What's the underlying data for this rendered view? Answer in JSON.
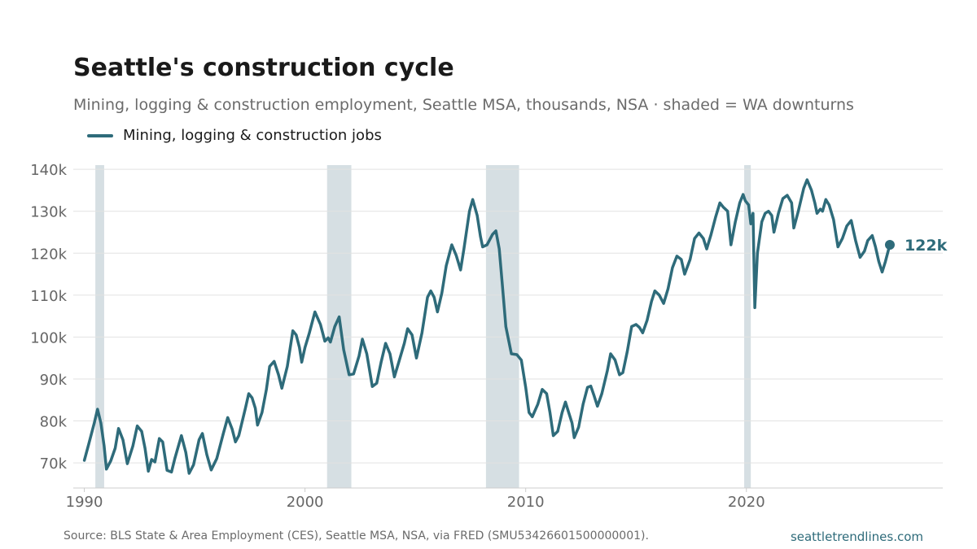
{
  "chart_data": {
    "type": "line",
    "title": "Seattle's construction cycle",
    "subtitle": "Mining, logging & construction employment, Seattle MSA, thousands, NSA · shaded = WA downturns",
    "xlabel": "",
    "ylabel": "",
    "xlim": [
      1989.5,
      2028.9
    ],
    "ylim": [
      64,
      141
    ],
    "x_ticks": [
      1990,
      2000,
      2010,
      2020
    ],
    "y_ticks": [
      70,
      80,
      90,
      100,
      110,
      120,
      130,
      140
    ],
    "y_tick_labels": [
      "70k",
      "80k",
      "90k",
      "100k",
      "110k",
      "120k",
      "130k",
      "140k"
    ],
    "grid": "horizontal",
    "legend_position": "top-left",
    "shaded_periods": [
      [
        1990.5,
        1990.9
      ],
      [
        2001.0,
        2002.1
      ],
      [
        2008.2,
        2009.7
      ],
      [
        2019.9,
        2020.2
      ]
    ],
    "series": [
      {
        "name": "Mining, logging & construction jobs",
        "color": "#2e6b7a",
        "points": [
          [
            1990.0,
            70.6
          ],
          [
            1990.2,
            74.5
          ],
          [
            1990.45,
            79.5
          ],
          [
            1990.6,
            82.8
          ],
          [
            1990.75,
            79.5
          ],
          [
            1990.9,
            74.0
          ],
          [
            1991.0,
            68.5
          ],
          [
            1991.2,
            70.5
          ],
          [
            1991.4,
            73.5
          ],
          [
            1991.55,
            78.2
          ],
          [
            1991.75,
            75.5
          ],
          [
            1991.95,
            69.8
          ],
          [
            1992.2,
            74.0
          ],
          [
            1992.4,
            78.8
          ],
          [
            1992.6,
            77.5
          ],
          [
            1992.75,
            73.5
          ],
          [
            1992.9,
            68.0
          ],
          [
            1993.05,
            70.8
          ],
          [
            1993.2,
            70.2
          ],
          [
            1993.4,
            75.8
          ],
          [
            1993.55,
            75.0
          ],
          [
            1993.75,
            68.2
          ],
          [
            1993.95,
            67.8
          ],
          [
            1994.1,
            71.0
          ],
          [
            1994.4,
            76.5
          ],
          [
            1994.6,
            72.5
          ],
          [
            1994.75,
            67.5
          ],
          [
            1994.95,
            69.5
          ],
          [
            1995.2,
            75.5
          ],
          [
            1995.35,
            77.0
          ],
          [
            1995.55,
            72.0
          ],
          [
            1995.75,
            68.3
          ],
          [
            1996.0,
            71.0
          ],
          [
            1996.3,
            77.0
          ],
          [
            1996.5,
            80.8
          ],
          [
            1996.7,
            78.0
          ],
          [
            1996.85,
            75.0
          ],
          [
            1997.0,
            76.5
          ],
          [
            1997.3,
            83.0
          ],
          [
            1997.45,
            86.5
          ],
          [
            1997.6,
            85.5
          ],
          [
            1997.75,
            83.0
          ],
          [
            1997.85,
            79.0
          ],
          [
            1998.05,
            82.0
          ],
          [
            1998.25,
            87.5
          ],
          [
            1998.4,
            93.0
          ],
          [
            1998.6,
            94.2
          ],
          [
            1998.8,
            91.0
          ],
          [
            1998.95,
            87.8
          ],
          [
            1999.2,
            93.0
          ],
          [
            1999.45,
            101.5
          ],
          [
            1999.6,
            100.5
          ],
          [
            1999.75,
            97.5
          ],
          [
            1999.85,
            94.0
          ],
          [
            2000.0,
            97.5
          ],
          [
            2000.2,
            101.0
          ],
          [
            2000.45,
            106.0
          ],
          [
            2000.7,
            103.0
          ],
          [
            2000.9,
            99.0
          ],
          [
            2001.05,
            99.8
          ],
          [
            2001.15,
            98.8
          ],
          [
            2001.35,
            102.5
          ],
          [
            2001.55,
            104.8
          ],
          [
            2001.75,
            97.0
          ],
          [
            2002.0,
            91.0
          ],
          [
            2002.2,
            91.2
          ],
          [
            2002.45,
            95.5
          ],
          [
            2002.6,
            99.5
          ],
          [
            2002.8,
            96.0
          ],
          [
            2003.05,
            88.2
          ],
          [
            2003.25,
            89.0
          ],
          [
            2003.45,
            94.0
          ],
          [
            2003.65,
            98.5
          ],
          [
            2003.85,
            96.0
          ],
          [
            2004.05,
            90.5
          ],
          [
            2004.25,
            94.0
          ],
          [
            2004.5,
            98.5
          ],
          [
            2004.65,
            102.0
          ],
          [
            2004.85,
            100.5
          ],
          [
            2005.05,
            95.0
          ],
          [
            2005.3,
            101.0
          ],
          [
            2005.55,
            109.5
          ],
          [
            2005.7,
            111.0
          ],
          [
            2005.85,
            109.5
          ],
          [
            2006.0,
            106.0
          ],
          [
            2006.2,
            110.5
          ],
          [
            2006.4,
            117.0
          ],
          [
            2006.65,
            122.0
          ],
          [
            2006.85,
            119.5
          ],
          [
            2007.05,
            116.0
          ],
          [
            2007.2,
            121.0
          ],
          [
            2007.45,
            130.0
          ],
          [
            2007.6,
            132.8
          ],
          [
            2007.8,
            129.0
          ],
          [
            2007.95,
            124.0
          ],
          [
            2008.05,
            121.5
          ],
          [
            2008.25,
            122.0
          ],
          [
            2008.5,
            124.5
          ],
          [
            2008.65,
            125.3
          ],
          [
            2008.8,
            121.0
          ],
          [
            2008.95,
            112.0
          ],
          [
            2009.1,
            102.5
          ],
          [
            2009.35,
            96.0
          ],
          [
            2009.6,
            95.8
          ],
          [
            2009.8,
            94.5
          ],
          [
            2010.0,
            88.0
          ],
          [
            2010.15,
            82.0
          ],
          [
            2010.3,
            81.0
          ],
          [
            2010.55,
            84.0
          ],
          [
            2010.75,
            87.5
          ],
          [
            2010.95,
            86.5
          ],
          [
            2011.1,
            82.0
          ],
          [
            2011.25,
            76.5
          ],
          [
            2011.45,
            77.5
          ],
          [
            2011.65,
            82.0
          ],
          [
            2011.8,
            84.5
          ],
          [
            2011.95,
            82.0
          ],
          [
            2012.1,
            79.5
          ],
          [
            2012.2,
            76.0
          ],
          [
            2012.4,
            78.5
          ],
          [
            2012.6,
            84.0
          ],
          [
            2012.8,
            88.0
          ],
          [
            2012.95,
            88.3
          ],
          [
            2013.1,
            86.0
          ],
          [
            2013.25,
            83.5
          ],
          [
            2013.45,
            86.5
          ],
          [
            2013.7,
            92.0
          ],
          [
            2013.85,
            96.0
          ],
          [
            2014.05,
            94.5
          ],
          [
            2014.25,
            91.0
          ],
          [
            2014.4,
            91.5
          ],
          [
            2014.6,
            96.5
          ],
          [
            2014.8,
            102.5
          ],
          [
            2015.0,
            103.0
          ],
          [
            2015.15,
            102.3
          ],
          [
            2015.3,
            101.0
          ],
          [
            2015.5,
            104.0
          ],
          [
            2015.7,
            108.5
          ],
          [
            2015.85,
            111.0
          ],
          [
            2016.05,
            110.0
          ],
          [
            2016.25,
            108.0
          ],
          [
            2016.45,
            111.5
          ],
          [
            2016.65,
            116.5
          ],
          [
            2016.85,
            119.3
          ],
          [
            2017.05,
            118.5
          ],
          [
            2017.2,
            115.0
          ],
          [
            2017.45,
            118.5
          ],
          [
            2017.65,
            123.5
          ],
          [
            2017.85,
            124.8
          ],
          [
            2018.05,
            123.5
          ],
          [
            2018.2,
            121.0
          ],
          [
            2018.4,
            124.5
          ],
          [
            2018.6,
            128.5
          ],
          [
            2018.8,
            132.0
          ],
          [
            2018.95,
            131.0
          ],
          [
            2019.15,
            130.0
          ],
          [
            2019.3,
            122.0
          ],
          [
            2019.5,
            127.5
          ],
          [
            2019.7,
            132.0
          ],
          [
            2019.85,
            134.0
          ],
          [
            2019.95,
            132.5
          ],
          [
            2020.1,
            131.5
          ],
          [
            2020.2,
            127.0
          ],
          [
            2020.3,
            129.5
          ],
          [
            2020.38,
            107.0
          ],
          [
            2020.5,
            120.0
          ],
          [
            2020.7,
            127.5
          ],
          [
            2020.85,
            129.5
          ],
          [
            2021.0,
            130.0
          ],
          [
            2021.15,
            129.0
          ],
          [
            2021.25,
            125.0
          ],
          [
            2021.45,
            129.5
          ],
          [
            2021.65,
            133.0
          ],
          [
            2021.85,
            133.8
          ],
          [
            2022.05,
            132.0
          ],
          [
            2022.15,
            126.0
          ],
          [
            2022.35,
            130.0
          ],
          [
            2022.6,
            135.5
          ],
          [
            2022.75,
            137.5
          ],
          [
            2022.95,
            135.0
          ],
          [
            2023.1,
            132.0
          ],
          [
            2023.2,
            129.5
          ],
          [
            2023.35,
            130.5
          ],
          [
            2023.45,
            130.0
          ],
          [
            2023.6,
            132.8
          ],
          [
            2023.75,
            131.5
          ],
          [
            2023.95,
            128.0
          ],
          [
            2024.15,
            121.5
          ],
          [
            2024.35,
            123.5
          ],
          [
            2024.55,
            126.5
          ],
          [
            2024.75,
            127.8
          ],
          [
            2024.95,
            123.0
          ],
          [
            2025.15,
            119.0
          ],
          [
            2025.35,
            120.5
          ],
          [
            2025.5,
            123.0
          ],
          [
            2025.7,
            124.2
          ],
          [
            2025.85,
            121.5
          ],
          [
            2026.0,
            118.0
          ],
          [
            2026.15,
            115.5
          ],
          [
            2026.3,
            118.0
          ],
          [
            2026.5,
            122.0
          ]
        ],
        "end_label": "122k",
        "end_value": 122
      }
    ]
  },
  "source": "Source: BLS State & Area Employment (CES), Seattle MSA, NSA, via FRED (SMU53426601500000001).",
  "site": "seattletrendlines.com",
  "colors": {
    "line": "#2e6b7a",
    "shade": "#d6dfe3",
    "grid": "#e2e2e2",
    "axis": "#cccccc",
    "tick_text": "#666666"
  }
}
